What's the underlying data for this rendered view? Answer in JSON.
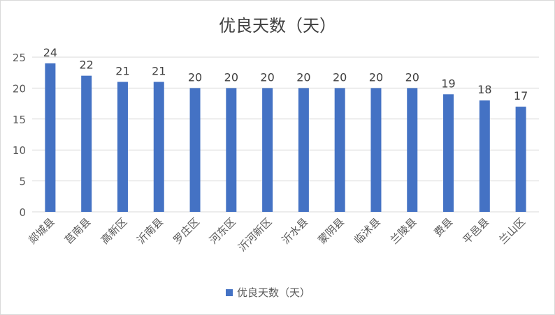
{
  "chart_data": {
    "type": "bar",
    "title": "优良天数（天）",
    "categories": [
      "郯城县",
      "莒南县",
      "高新区",
      "沂南县",
      "罗庄区",
      "河东区",
      "沂河新区",
      "沂水县",
      "蒙阴县",
      "临沭县",
      "兰陵县",
      "费县",
      "平邑县",
      "兰山区"
    ],
    "series": [
      {
        "name": "优良天数（天）",
        "values": [
          24,
          22,
          21,
          21,
          20,
          20,
          20,
          20,
          20,
          20,
          20,
          19,
          18,
          17
        ],
        "color": "#4472c4"
      }
    ],
    "ylim": [
      0,
      25
    ],
    "yticks": [
      0,
      5,
      10,
      15,
      20,
      25
    ],
    "grid": true,
    "legend": "bottom",
    "data_labels": true
  }
}
